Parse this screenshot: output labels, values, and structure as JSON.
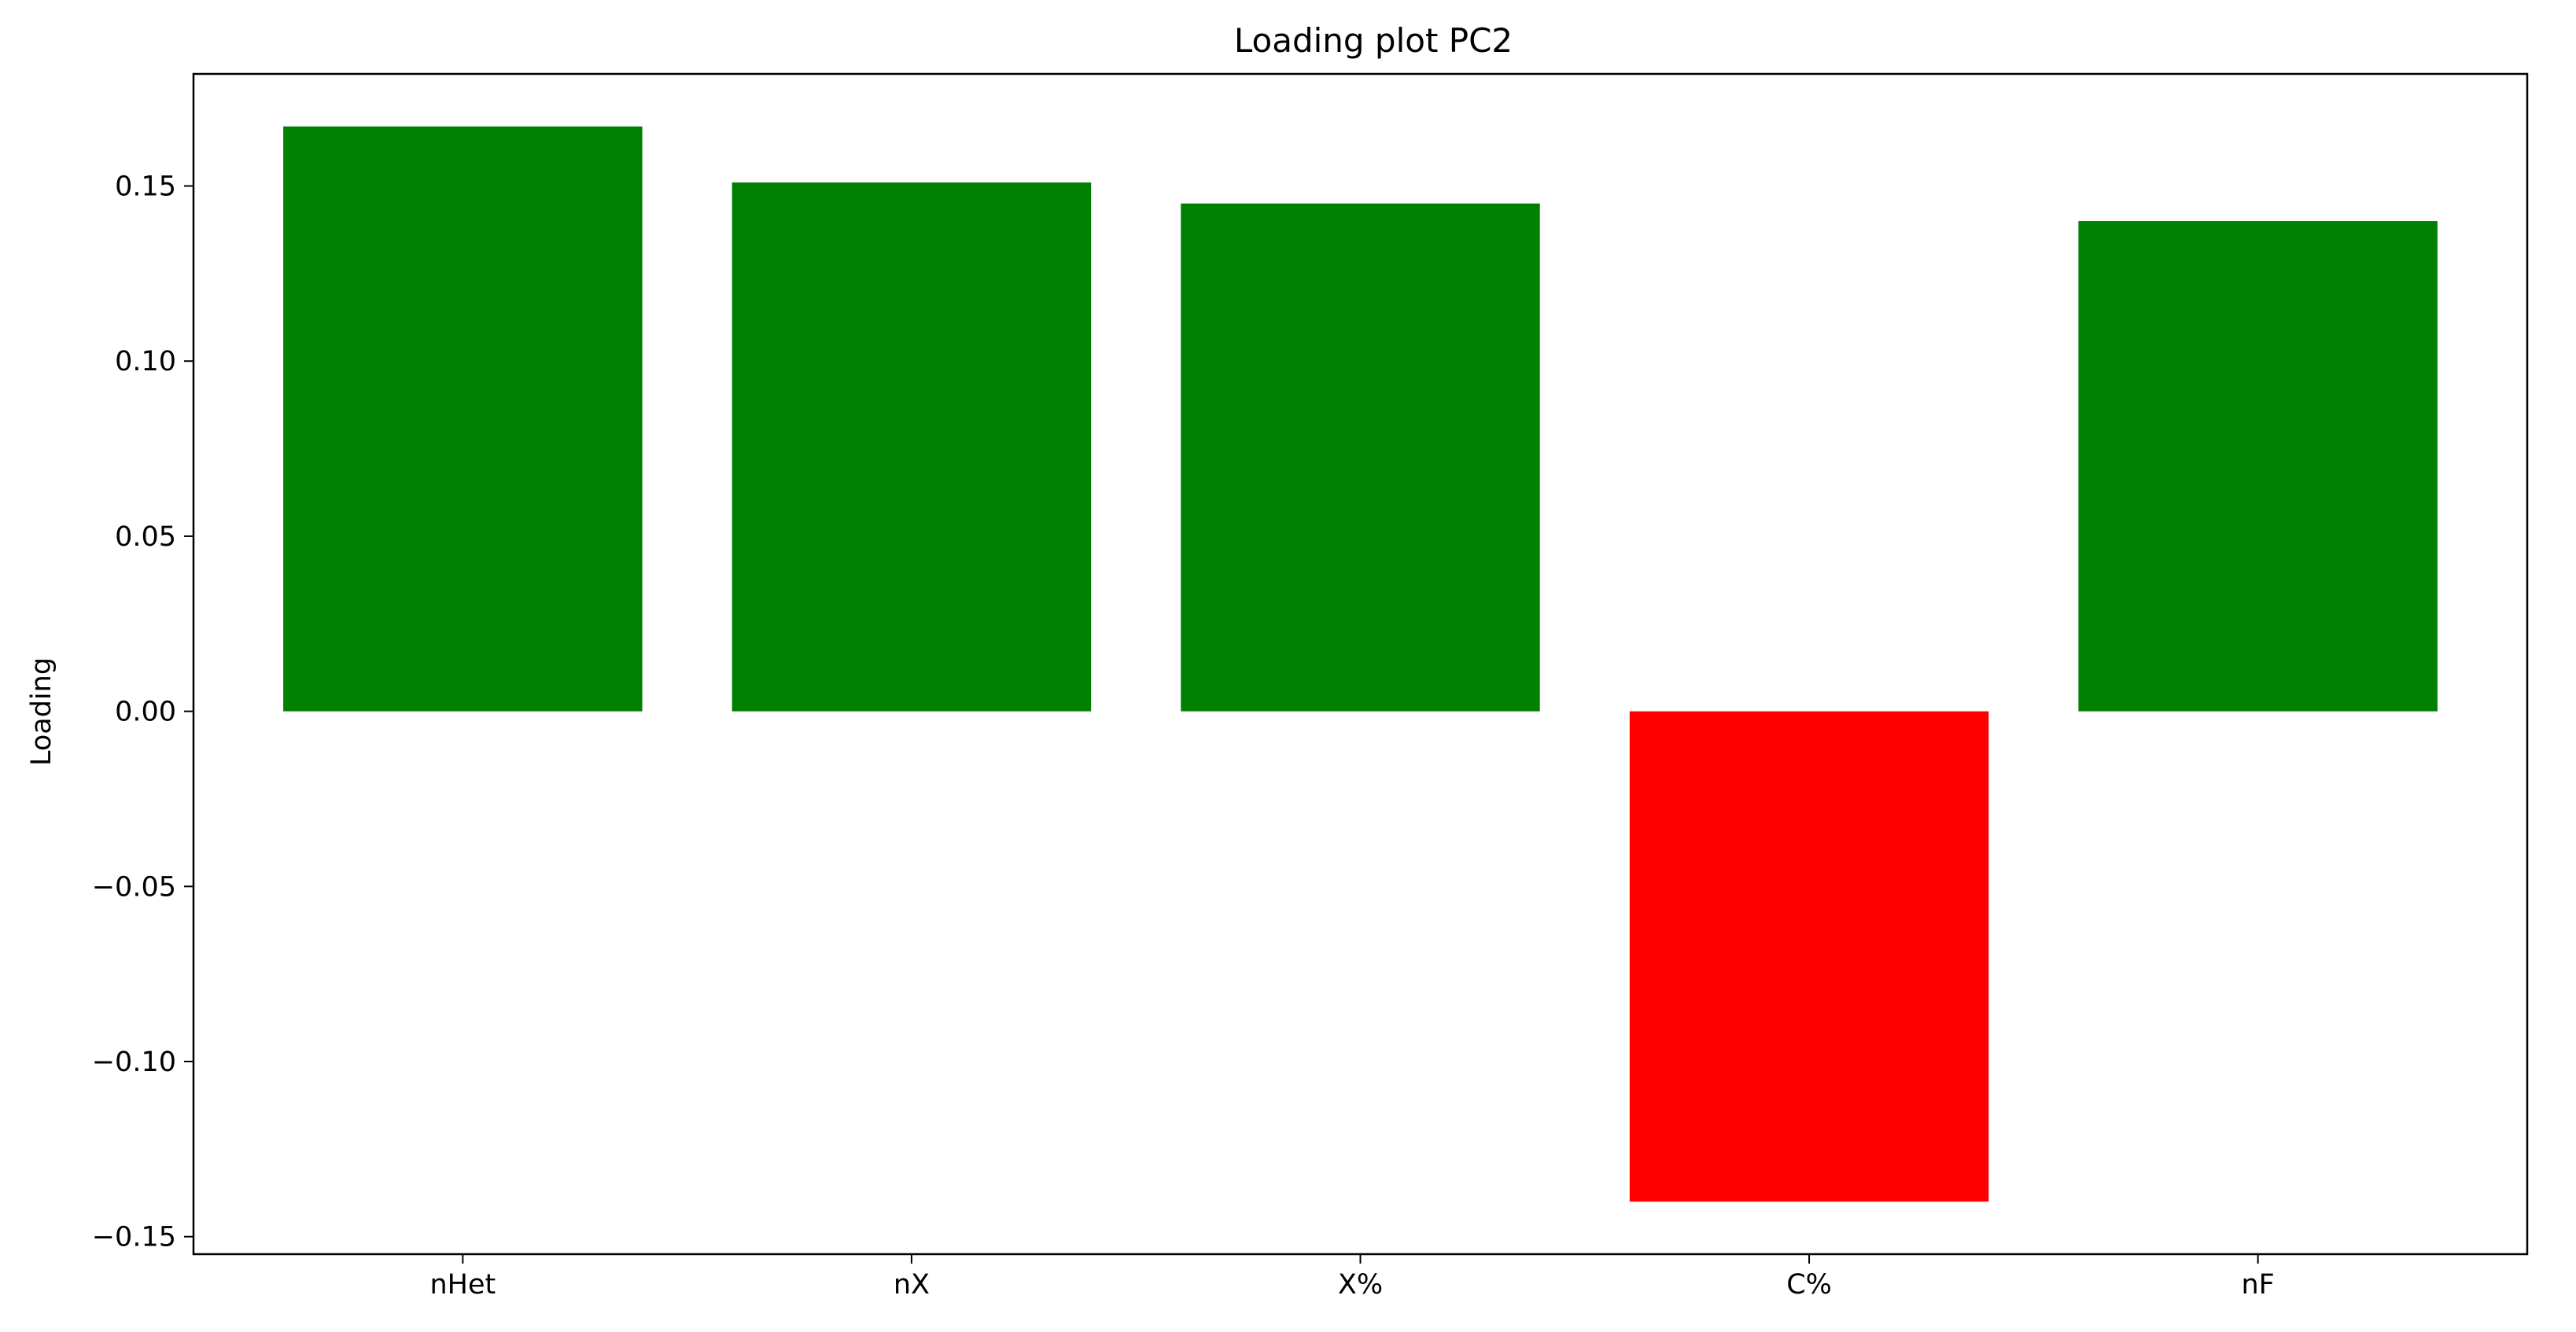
{
  "chart_data": {
    "type": "bar",
    "title": "Loading plot PC2",
    "xlabel": "",
    "ylabel": "Loading",
    "categories": [
      "nHet",
      "nX",
      "X%",
      "C%",
      "nF"
    ],
    "values": [
      0.167,
      0.151,
      0.145,
      -0.14,
      0.14
    ],
    "ylim": [
      -0.155,
      0.182
    ],
    "yticks": [
      -0.15,
      -0.1,
      -0.05,
      0.0,
      0.05,
      0.1,
      0.15
    ],
    "ytick_labels": [
      "−0.15",
      "−0.10",
      "−0.05",
      "0.00",
      "0.05",
      "0.10",
      "0.15"
    ],
    "colors": {
      "positive": "#008000",
      "negative": "#ff0000"
    },
    "grid": false,
    "legend": "none"
  }
}
